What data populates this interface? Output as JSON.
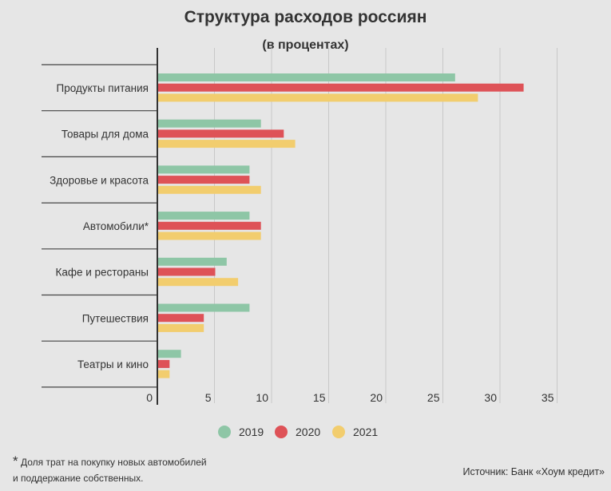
{
  "chart_data": {
    "type": "bar",
    "orientation": "horizontal",
    "title": "Структура расходов россиян",
    "subtitle": "(в процентах)",
    "categories": [
      "Продукты питания",
      "Товары для дома",
      "Здоровье и красота",
      "Автомобили*",
      "Кафе и рестораны",
      "Путешествия",
      "Театры и кино"
    ],
    "series": [
      {
        "name": "2019",
        "color": "#8ec6a6",
        "values": [
          26,
          9,
          8,
          8,
          6,
          8,
          2
        ]
      },
      {
        "name": "2020",
        "color": "#de5257",
        "values": [
          32,
          11,
          8,
          9,
          5,
          4,
          1
        ]
      },
      {
        "name": "2021",
        "color": "#f2cd6e",
        "values": [
          28,
          12,
          9,
          9,
          7,
          4,
          1
        ]
      }
    ],
    "xlim": [
      0,
      35
    ],
    "xticks": [
      "0",
      "5",
      "10",
      "15",
      "20",
      "25",
      "30",
      "35"
    ],
    "grid": true,
    "legend": "bottom"
  },
  "footnote": {
    "line1": "Доля трат на покупку новых автомобилей",
    "line2": "и поддержание собственных.",
    "star": "*"
  },
  "source": "Источник: Банк «Хоум кредит»"
}
